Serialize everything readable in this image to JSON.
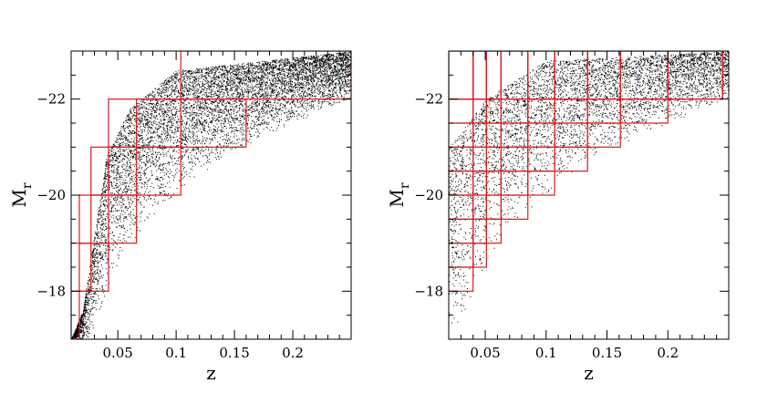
{
  "colors": {
    "points": "#000000",
    "bins": "#e0191b",
    "frame": "#000000",
    "background": "#ffffff"
  },
  "chart_data": [
    {
      "type": "scatter",
      "title": "",
      "xlabel": "z",
      "ylabel": "M",
      "ylabel_subscript": "r",
      "xlim": [
        0.01,
        0.25
      ],
      "ylim": [
        -17,
        -23
      ],
      "y_inverted": true,
      "grid": false,
      "x_ticks": [
        0.05,
        0.1,
        0.15,
        0.2
      ],
      "x_tick_labels": [
        "0.05",
        "0.1",
        "0.15",
        "0.2"
      ],
      "y_ticks": [
        -18,
        -20,
        -22
      ],
      "y_tick_labels": [
        "-18",
        "-20",
        "-22"
      ],
      "series": [
        {
          "kind": "galaxy sample (dense cloud of points)",
          "bright_edge": [
            [
              0.01,
              -17.0
            ],
            [
              0.02,
              -17.6
            ],
            [
              0.04,
              -20.8
            ],
            [
              0.06,
              -21.8
            ],
            [
              0.1,
              -22.6
            ],
            [
              0.25,
              -23.0
            ]
          ],
          "faint_limit": [
            [
              0.025,
              -17.0
            ],
            [
              0.05,
              -18.5
            ],
            [
              0.08,
              -19.6
            ],
            [
              0.1,
              -20.0
            ],
            [
              0.15,
              -20.9
            ],
            [
              0.2,
              -21.5
            ],
            [
              0.25,
              -22.0
            ]
          ]
        }
      ],
      "bins": [
        {
          "z": [
            0.01,
            0.017
          ],
          "m": [
            -17,
            -18
          ]
        },
        {
          "z": [
            0.017,
            0.027
          ],
          "m": [
            -18,
            -19
          ]
        },
        {
          "z": [
            0.027,
            0.042
          ],
          "m": [
            -19,
            -20
          ]
        },
        {
          "z": [
            0.042,
            0.066
          ],
          "m": [
            -20,
            -21
          ]
        },
        {
          "z": [
            0.066,
            0.104
          ],
          "m": [
            -21,
            -22
          ]
        },
        {
          "z": [
            0.104,
            0.25
          ],
          "m": [
            -22,
            -23
          ]
        },
        {
          "z": [
            0.01,
            0.042
          ],
          "m": [
            -18,
            -19
          ]
        },
        {
          "z": [
            0.017,
            0.066
          ],
          "m": [
            -19,
            -20
          ]
        },
        {
          "z": [
            0.027,
            0.104
          ],
          "m": [
            -20,
            -21
          ]
        },
        {
          "z": [
            0.042,
            0.16
          ],
          "m": [
            -21,
            -22
          ]
        },
        {
          "z": [
            0.066,
            0.25
          ],
          "m": [
            -22,
            -22
          ]
        }
      ]
    },
    {
      "type": "scatter",
      "title": "",
      "xlabel": "z",
      "ylabel": "M",
      "ylabel_subscript": "r",
      "xlim": [
        0.02,
        0.25
      ],
      "ylim": [
        -17,
        -23
      ],
      "y_inverted": true,
      "grid": false,
      "x_ticks": [
        0.05,
        0.1,
        0.15,
        0.2
      ],
      "x_tick_labels": [
        "0.05",
        "0.1",
        "0.15",
        "0.2"
      ],
      "y_ticks": [
        -18,
        -20,
        -22
      ],
      "y_tick_labels": [
        "-18",
        "-20",
        "-22"
      ],
      "series": [
        {
          "kind": "galaxy sample (dense cloud of points)",
          "bright_edge": [
            [
              0.02,
              -21.0
            ],
            [
              0.05,
              -22.0
            ],
            [
              0.1,
              -22.8
            ],
            [
              0.25,
              -23.0
            ]
          ],
          "faint_limit": [
            [
              0.028,
              -17.0
            ],
            [
              0.05,
              -18.5
            ],
            [
              0.08,
              -19.6
            ],
            [
              0.1,
              -20.0
            ],
            [
              0.15,
              -20.9
            ],
            [
              0.2,
              -21.5
            ],
            [
              0.25,
              -22.0
            ]
          ]
        }
      ],
      "z_edges": [
        0.02,
        0.04,
        0.051,
        0.063,
        0.085,
        0.107,
        0.134,
        0.161,
        0.2,
        0.245
      ],
      "m_edges": [
        -18,
        -18.5,
        -19,
        -19.5,
        -20,
        -20.5,
        -21,
        -21.5,
        -22,
        -23
      ]
    }
  ]
}
